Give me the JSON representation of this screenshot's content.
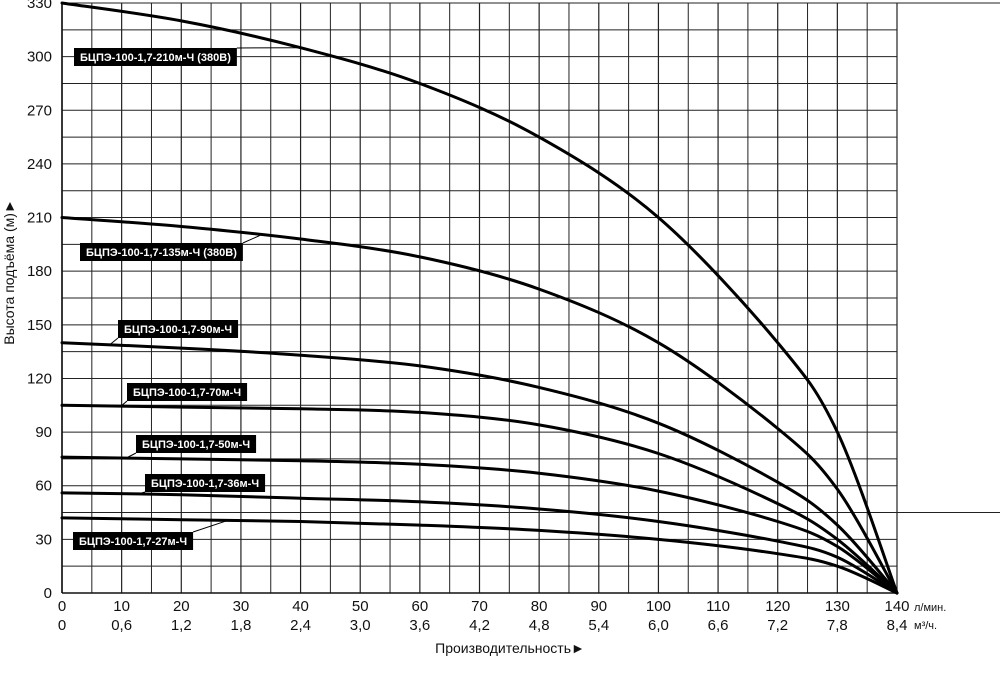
{
  "chart_data": {
    "type": "line",
    "xlabel": "Производительность►",
    "ylabel": "Высота подъёма (м)►",
    "x_unit_primary": "л/мин.",
    "x_unit_secondary": "м³/ч.",
    "xlim": [
      0,
      140
    ],
    "ylim": [
      0,
      330
    ],
    "x_ticks": [
      0,
      10,
      20,
      30,
      40,
      50,
      60,
      70,
      80,
      90,
      100,
      110,
      120,
      130,
      140
    ],
    "x_ticks_secondary": [
      "0",
      "0,6",
      "1,2",
      "1,8",
      "2,4",
      "3,0",
      "3,6",
      "4,2",
      "4,8",
      "5,4",
      "6,0",
      "6,6",
      "7,2",
      "7,8",
      "8,4"
    ],
    "y_ticks": [
      0,
      30,
      60,
      90,
      120,
      150,
      180,
      210,
      240,
      270,
      300,
      330
    ],
    "grid": true,
    "x": [
      0,
      20,
      40,
      60,
      80,
      100,
      120,
      130,
      140
    ],
    "series": [
      {
        "name": "БЦПЭ-100-1,7-210м-Ч (380В)",
        "values": [
          330,
          320,
          305,
          285,
          255,
          210,
          140,
          90,
          0
        ]
      },
      {
        "name": "БЦПЭ-100-1,7-135м-Ч (380В)",
        "values": [
          210,
          205,
          198,
          188,
          170,
          140,
          92,
          58,
          0
        ]
      },
      {
        "name": "БЦПЭ-100-1,7-90м-Ч",
        "values": [
          140,
          137,
          133,
          127,
          115,
          95,
          62,
          38,
          0
        ]
      },
      {
        "name": "БЦПЭ-100-1,7-70м-Ч",
        "values": [
          105,
          104,
          103,
          101,
          94,
          78,
          50,
          30,
          0
        ]
      },
      {
        "name": "БЦПЭ-100-1,7-50м-Ч",
        "values": [
          76,
          75,
          74,
          72,
          67,
          57,
          40,
          26,
          0
        ]
      },
      {
        "name": "БЦПЭ-100-1,7-36м-Ч",
        "values": [
          56,
          55,
          53,
          51,
          47,
          40,
          29,
          20,
          0
        ]
      },
      {
        "name": "БЦПЭ-100-1,7-27м-Ч",
        "values": [
          42,
          41,
          40,
          38,
          35,
          30,
          22,
          15,
          0
        ]
      }
    ]
  }
}
